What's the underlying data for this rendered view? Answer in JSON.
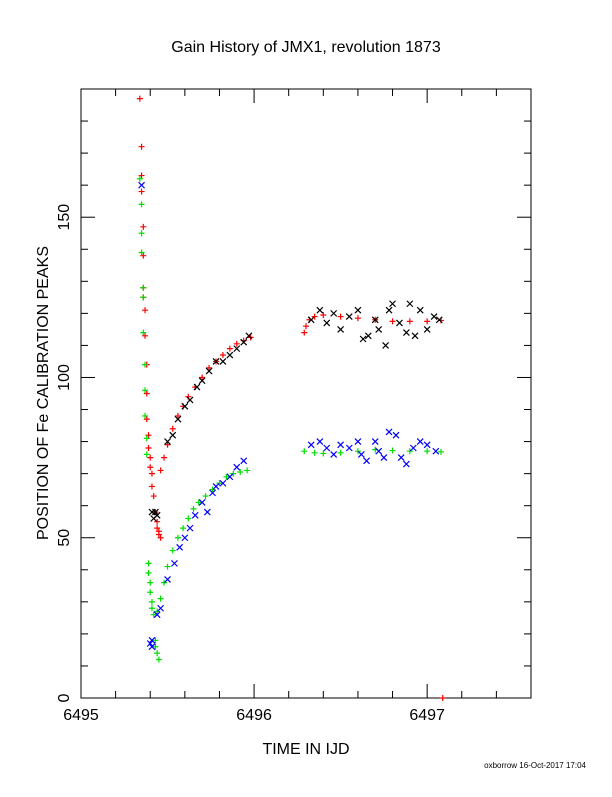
{
  "chart_data": {
    "type": "scatter",
    "title": "Gain History of JMX1, revolution 1873",
    "xlabel": "TIME IN IJD",
    "ylabel": "POSITION OF Fe CALIBRATION PEAKS",
    "xlim": [
      6495.0,
      6497.6
    ],
    "ylim": [
      0,
      190
    ],
    "x_ticks": [
      6495,
      6496,
      6497
    ],
    "x_tick_labels": [
      "6495",
      "6496",
      "6497"
    ],
    "y_ticks": [
      0,
      50,
      100,
      150
    ],
    "y_tick_labels": [
      "0",
      "50",
      "100",
      "150"
    ],
    "grid": false,
    "legend": "none",
    "footer": "oxborrow 16-Oct-2017 17:04",
    "series": [
      {
        "marker": "plus",
        "color": "#ff0000",
        "points": [
          [
            6495.34,
            187
          ],
          [
            6495.35,
            172
          ],
          [
            6495.35,
            163
          ],
          [
            6495.35,
            158
          ],
          [
            6495.36,
            147
          ],
          [
            6495.36,
            138
          ],
          [
            6495.36,
            128
          ],
          [
            6495.36,
            125
          ],
          [
            6495.37,
            121
          ],
          [
            6495.37,
            113
          ],
          [
            6495.38,
            104
          ],
          [
            6495.38,
            95
          ],
          [
            6495.38,
            87
          ],
          [
            6495.39,
            82
          ],
          [
            6495.39,
            78
          ],
          [
            6495.4,
            75
          ],
          [
            6495.4,
            72
          ],
          [
            6495.41,
            70
          ],
          [
            6495.41,
            66
          ],
          [
            6495.42,
            63
          ],
          [
            6495.43,
            58
          ],
          [
            6495.44,
            55
          ],
          [
            6495.44,
            53
          ],
          [
            6495.45,
            52
          ],
          [
            6495.45,
            51
          ],
          [
            6495.46,
            50
          ],
          [
            6495.46,
            71
          ],
          [
            6495.48,
            75
          ],
          [
            6495.5,
            79
          ],
          [
            6495.53,
            84
          ],
          [
            6495.56,
            88
          ],
          [
            6495.59,
            91
          ],
          [
            6495.62,
            94
          ],
          [
            6495.66,
            97
          ],
          [
            6495.7,
            100
          ],
          [
            6495.74,
            103
          ],
          [
            6495.78,
            105
          ],
          [
            6495.82,
            107
          ],
          [
            6495.86,
            109
          ],
          [
            6495.9,
            110.5
          ],
          [
            6495.94,
            111.5
          ],
          [
            6495.98,
            112.5
          ],
          [
            6496.29,
            114
          ],
          [
            6496.3,
            116
          ],
          [
            6496.32,
            118
          ],
          [
            6496.35,
            119
          ],
          [
            6496.4,
            119.5
          ],
          [
            6496.5,
            119
          ],
          [
            6496.6,
            118.5
          ],
          [
            6496.7,
            118
          ],
          [
            6496.8,
            117.5
          ],
          [
            6496.9,
            117.5
          ],
          [
            6497.0,
            117.5
          ],
          [
            6497.08,
            117.8
          ],
          [
            6497.09,
            0
          ]
        ]
      },
      {
        "marker": "cross",
        "color": "#000000",
        "points": [
          [
            6495.41,
            58
          ],
          [
            6495.42,
            56
          ],
          [
            6495.43,
            58
          ],
          [
            6495.44,
            57
          ],
          [
            6495.5,
            80
          ],
          [
            6495.53,
            82
          ],
          [
            6495.56,
            87
          ],
          [
            6495.6,
            91
          ],
          [
            6495.63,
            93
          ],
          [
            6495.67,
            97
          ],
          [
            6495.7,
            99
          ],
          [
            6495.74,
            102
          ],
          [
            6495.78,
            105
          ],
          [
            6495.82,
            105
          ],
          [
            6495.86,
            107
          ],
          [
            6495.9,
            109
          ],
          [
            6495.94,
            111
          ],
          [
            6495.97,
            113
          ],
          [
            6496.33,
            118
          ],
          [
            6496.38,
            121
          ],
          [
            6496.42,
            117
          ],
          [
            6496.46,
            120
          ],
          [
            6496.5,
            115
          ],
          [
            6496.55,
            119
          ],
          [
            6496.6,
            121
          ],
          [
            6496.63,
            112
          ],
          [
            6496.66,
            113
          ],
          [
            6496.7,
            118
          ],
          [
            6496.72,
            115
          ],
          [
            6496.76,
            110
          ],
          [
            6496.78,
            121
          ],
          [
            6496.8,
            123
          ],
          [
            6496.84,
            117
          ],
          [
            6496.88,
            114
          ],
          [
            6496.9,
            123
          ],
          [
            6496.93,
            113
          ],
          [
            6496.96,
            121
          ],
          [
            6497.0,
            115
          ],
          [
            6497.04,
            119
          ],
          [
            6497.07,
            118
          ]
        ]
      },
      {
        "marker": "plus",
        "color": "#00dd00",
        "points": [
          [
            6495.34,
            162
          ],
          [
            6495.35,
            154
          ],
          [
            6495.35,
            145
          ],
          [
            6495.35,
            139
          ],
          [
            6495.36,
            128
          ],
          [
            6495.36,
            125
          ],
          [
            6495.36,
            114
          ],
          [
            6495.37,
            104
          ],
          [
            6495.37,
            96
          ],
          [
            6495.37,
            88
          ],
          [
            6495.38,
            81
          ],
          [
            6495.38,
            76
          ],
          [
            6495.39,
            42
          ],
          [
            6495.39,
            39
          ],
          [
            6495.4,
            36
          ],
          [
            6495.4,
            33
          ],
          [
            6495.41,
            30
          ],
          [
            6495.41,
            28
          ],
          [
            6495.42,
            26
          ],
          [
            6495.43,
            18
          ],
          [
            6495.43,
            16
          ],
          [
            6495.44,
            14
          ],
          [
            6495.45,
            12
          ],
          [
            6495.44,
            27
          ],
          [
            6495.46,
            31
          ],
          [
            6495.48,
            36
          ],
          [
            6495.5,
            41
          ],
          [
            6495.53,
            46
          ],
          [
            6495.56,
            50
          ],
          [
            6495.59,
            53
          ],
          [
            6495.62,
            56
          ],
          [
            6495.65,
            59
          ],
          [
            6495.68,
            61
          ],
          [
            6495.72,
            63
          ],
          [
            6495.76,
            65
          ],
          [
            6495.8,
            67
          ],
          [
            6495.84,
            69
          ],
          [
            6495.88,
            70
          ],
          [
            6495.92,
            70.5
          ],
          [
            6495.96,
            71
          ],
          [
            6496.29,
            77
          ],
          [
            6496.35,
            76.5
          ],
          [
            6496.4,
            76.3
          ],
          [
            6496.5,
            76.5
          ],
          [
            6496.6,
            77
          ],
          [
            6496.7,
            77.5
          ],
          [
            6496.8,
            77.2
          ],
          [
            6496.9,
            77
          ],
          [
            6497.0,
            77
          ],
          [
            6497.08,
            76.8
          ]
        ]
      },
      {
        "marker": "cross",
        "color": "#0000ff",
        "points": [
          [
            6495.35,
            160
          ],
          [
            6495.4,
            17
          ],
          [
            6495.41,
            18
          ],
          [
            6495.41,
            16
          ],
          [
            6495.44,
            26
          ],
          [
            6495.46,
            28
          ],
          [
            6495.5,
            37
          ],
          [
            6495.54,
            42
          ],
          [
            6495.57,
            47
          ],
          [
            6495.6,
            50
          ],
          [
            6495.63,
            53
          ],
          [
            6495.66,
            57
          ],
          [
            6495.7,
            61
          ],
          [
            6495.73,
            58
          ],
          [
            6495.76,
            64
          ],
          [
            6495.78,
            66
          ],
          [
            6495.82,
            67
          ],
          [
            6495.86,
            69
          ],
          [
            6495.9,
            72
          ],
          [
            6495.94,
            74
          ],
          [
            6496.33,
            79
          ],
          [
            6496.38,
            80
          ],
          [
            6496.42,
            78
          ],
          [
            6496.46,
            76
          ],
          [
            6496.5,
            79
          ],
          [
            6496.55,
            78
          ],
          [
            6496.6,
            80
          ],
          [
            6496.62,
            76
          ],
          [
            6496.65,
            74
          ],
          [
            6496.7,
            80
          ],
          [
            6496.72,
            77
          ],
          [
            6496.75,
            75
          ],
          [
            6496.78,
            83
          ],
          [
            6496.82,
            82
          ],
          [
            6496.85,
            75
          ],
          [
            6496.88,
            73
          ],
          [
            6496.92,
            78
          ],
          [
            6496.96,
            80
          ],
          [
            6497.0,
            79
          ],
          [
            6497.05,
            77
          ]
        ]
      }
    ]
  }
}
